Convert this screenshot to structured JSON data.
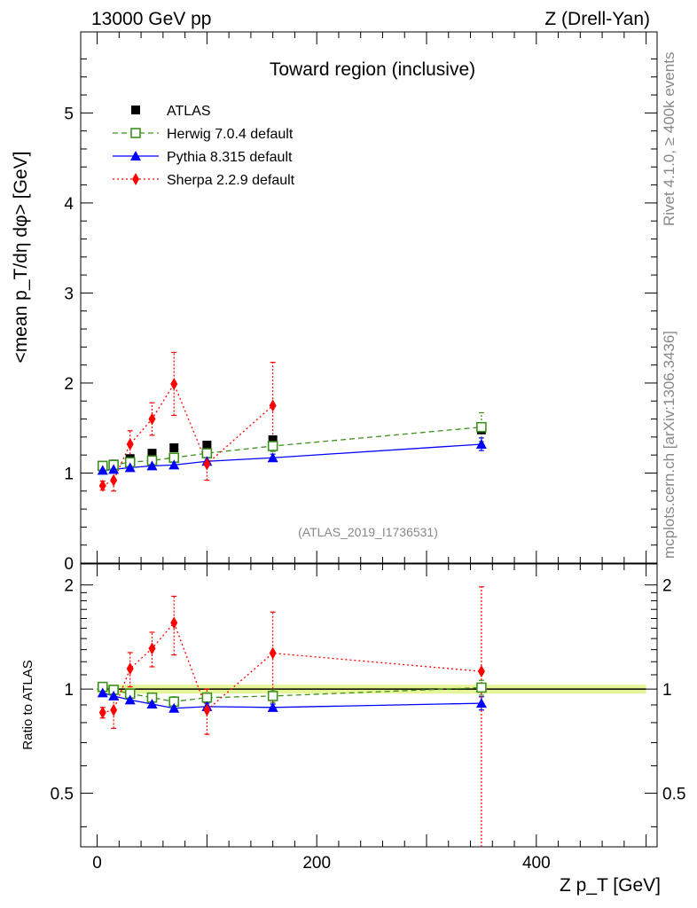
{
  "header": {
    "energy_label": "13000 GeV pp",
    "process_label": "Z (Drell-Yan)"
  },
  "side_labels": {
    "rivet": "Rivet 4.1.0, ≥ 400k events",
    "mcplots": "mcplots.cern.ch [arXiv:1306.3436]"
  },
  "chart_data": [
    {
      "type": "scatter",
      "panel": "main",
      "title": "Toward region (inclusive)",
      "analysis_tag": "(ATLAS_2019_I1736531)",
      "ylabel": "<mean p_T/dη dφ> [GeV]",
      "ylim": [
        0,
        5.9
      ],
      "xlim": [
        -15,
        510
      ],
      "yticks": [
        0,
        1,
        2,
        3,
        4,
        5
      ],
      "ytick_labels": [
        "0",
        "1",
        "2",
        "3",
        "4",
        "5"
      ],
      "x": [
        5,
        15,
        30,
        50,
        70,
        100,
        160,
        350
      ],
      "series": [
        {
          "name": "ATLAS",
          "color": "#000000",
          "marker": "square",
          "values": [
            1.07,
            1.1,
            1.16,
            1.22,
            1.28,
            1.31,
            1.37,
            1.48
          ]
        },
        {
          "name": "Herwig 7.0.4 default",
          "color": "#3d8f1e",
          "marker": "open-square",
          "dash": "6,4",
          "values": [
            1.08,
            1.09,
            1.12,
            1.14,
            1.17,
            1.22,
            1.3,
            1.51
          ],
          "err": [
            0.03,
            0.03,
            0.03,
            0.03,
            0.04,
            0.05,
            0.06,
            0.16
          ]
        },
        {
          "name": "Pythia 8.315 default",
          "color": "#0000ff",
          "marker": "triangle",
          "dash": "",
          "values": [
            1.03,
            1.04,
            1.06,
            1.08,
            1.09,
            1.13,
            1.17,
            1.32
          ],
          "err": [
            0.03,
            0.03,
            0.03,
            0.03,
            0.03,
            0.04,
            0.04,
            0.07
          ]
        },
        {
          "name": "Sherpa 2.2.9 default",
          "color": "#ff0000",
          "marker": "diamond",
          "dash": "2,3",
          "values": [
            0.86,
            0.92,
            1.32,
            1.6,
            1.99,
            1.1,
            1.75,
            null
          ],
          "err": [
            0.05,
            0.12,
            0.15,
            0.18,
            0.35,
            0.18,
            0.48,
            null
          ]
        }
      ]
    },
    {
      "type": "scatter",
      "panel": "ratio",
      "ylabel": "Ratio to ATLAS",
      "ylim": [
        0.35,
        2.3
      ],
      "xlim": [
        -15,
        510
      ],
      "xlabel": "Z p_T [GeV]",
      "yticks": [
        0.5,
        1,
        2
      ],
      "ytick_labels": [
        "0.5",
        "1",
        "2"
      ],
      "xticks": [
        0,
        200,
        400
      ],
      "xtick_labels": [
        "0",
        "200",
        "400"
      ],
      "x": [
        5,
        15,
        30,
        50,
        70,
        100,
        160,
        350
      ],
      "series": [
        {
          "name": "Herwig 7.0.4 default",
          "color": "#3d8f1e",
          "marker": "open-square",
          "dash": "6,4",
          "values": [
            1.015,
            0.995,
            0.97,
            0.945,
            0.92,
            0.945,
            0.955,
            1.01
          ],
          "err": [
            0.02,
            0.02,
            0.02,
            0.02,
            0.03,
            0.03,
            0.04,
            0.05
          ]
        },
        {
          "name": "Pythia 8.315 default",
          "color": "#0000ff",
          "marker": "triangle",
          "dash": "",
          "values": [
            0.975,
            0.955,
            0.93,
            0.905,
            0.88,
            0.89,
            0.885,
            0.91
          ],
          "err": [
            0.02,
            0.02,
            0.02,
            0.02,
            0.02,
            0.02,
            0.02,
            0.04
          ]
        },
        {
          "name": "Sherpa 2.2.9 default",
          "color": "#ff0000",
          "marker": "diamond",
          "dash": "2,3",
          "values": [
            0.855,
            0.87,
            1.145,
            1.31,
            1.555,
            0.87,
            1.27,
            1.125
          ],
          "err": [
            0.03,
            0.1,
            0.13,
            0.15,
            0.3,
            0.13,
            0.4,
            0.85
          ]
        }
      ]
    }
  ]
}
